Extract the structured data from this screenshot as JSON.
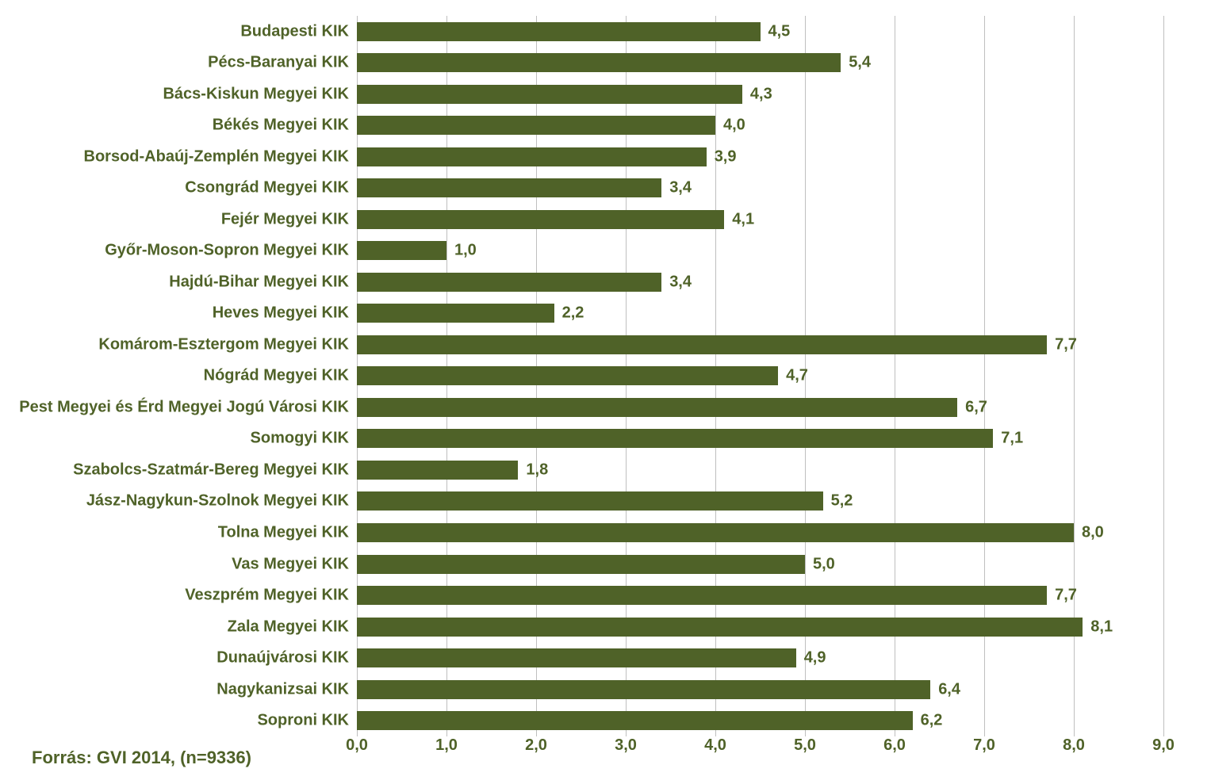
{
  "chart": {
    "type": "bar-horizontal",
    "bar_color": "#4f6228",
    "text_color": "#4f6228",
    "background_color": "#ffffff",
    "grid_color": "#bfbfbf",
    "source": "Forrás: GVI 2014, (n=9336)",
    "label_fontsize": 20,
    "value_fontsize": 20,
    "tick_fontsize": 20,
    "source_fontsize": 22,
    "font_weight": "bold",
    "xlim": [
      0.0,
      9.0
    ],
    "xtick_step": 1.0,
    "xticks": [
      "0,0",
      "1,0",
      "2,0",
      "3,0",
      "4,0",
      "5,0",
      "6,0",
      "7,0",
      "8,0",
      "9,0"
    ],
    "bars": [
      {
        "label": "Budapesti KIK",
        "value": 4.5,
        "display": "4,5"
      },
      {
        "label": "Pécs-Baranyai KIK",
        "value": 5.4,
        "display": "5,4"
      },
      {
        "label": "Bács-Kiskun Megyei KIK",
        "value": 4.3,
        "display": "4,3"
      },
      {
        "label": "Békés Megyei KIK",
        "value": 4.0,
        "display": "4,0"
      },
      {
        "label": "Borsod-Abaúj-Zemplén Megyei KIK",
        "value": 3.9,
        "display": "3,9"
      },
      {
        "label": "Csongrád Megyei KIK",
        "value": 3.4,
        "display": "3,4"
      },
      {
        "label": "Fejér Megyei KIK",
        "value": 4.1,
        "display": "4,1"
      },
      {
        "label": "Győr-Moson-Sopron Megyei KIK",
        "value": 1.0,
        "display": "1,0"
      },
      {
        "label": "Hajdú-Bihar Megyei KIK",
        "value": 3.4,
        "display": "3,4"
      },
      {
        "label": "Heves Megyei KIK",
        "value": 2.2,
        "display": "2,2"
      },
      {
        "label": "Komárom-Esztergom Megyei KIK",
        "value": 7.7,
        "display": "7,7"
      },
      {
        "label": "Nógrád Megyei KIK",
        "value": 4.7,
        "display": "4,7"
      },
      {
        "label": "Pest Megyei és Érd Megyei Jogú Városi KIK",
        "value": 6.7,
        "display": "6,7"
      },
      {
        "label": "Somogyi KIK",
        "value": 7.1,
        "display": "7,1"
      },
      {
        "label": "Szabolcs-Szatmár-Bereg Megyei KIK",
        "value": 1.8,
        "display": "1,8"
      },
      {
        "label": "Jász-Nagykun-Szolnok Megyei KIK",
        "value": 5.2,
        "display": "5,2"
      },
      {
        "label": "Tolna Megyei KIK",
        "value": 8.0,
        "display": "8,0"
      },
      {
        "label": "Vas Megyei KIK",
        "value": 5.0,
        "display": "5,0"
      },
      {
        "label": "Veszprém Megyei KIK",
        "value": 7.7,
        "display": "7,7"
      },
      {
        "label": "Zala Megyei KIK",
        "value": 8.1,
        "display": "8,1"
      },
      {
        "label": "Dunaújvárosi KIK",
        "value": 4.9,
        "display": "4,9"
      },
      {
        "label": "Nagykanizsai KIK",
        "value": 6.4,
        "display": "6,4"
      },
      {
        "label": "Soproni KIK",
        "value": 6.2,
        "display": "6,2"
      }
    ]
  }
}
